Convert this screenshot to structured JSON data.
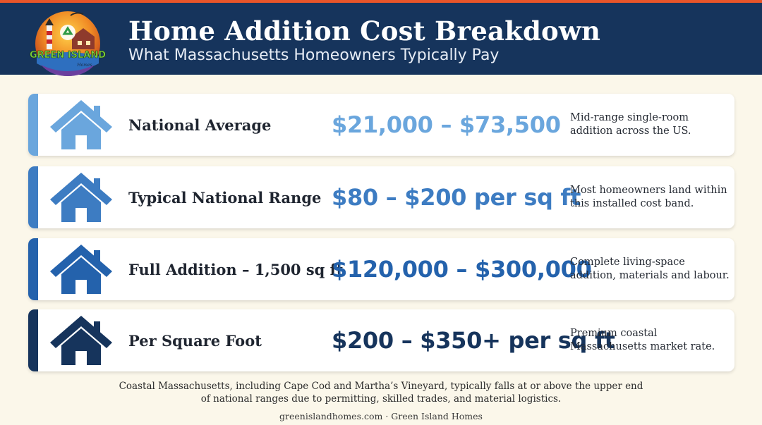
{
  "header": {
    "title": "Home Addition Cost Breakdown",
    "subtitle": "What Massachusetts Homeowners Typically Pay",
    "logo_text": "GREEN ISLAND",
    "logo_subtext": "Homes",
    "accent_color": "#e8552a",
    "background_color": "#16345c"
  },
  "cards": [
    {
      "label": "National Average",
      "value": "$21,000 – $73,500",
      "description": [
        "Mid-range single-room",
        "addition across the US."
      ],
      "color": "#6aa6dd",
      "icon": "house-icon"
    },
    {
      "label": "Typical National Range",
      "value": "$80 – $200 per sq ft",
      "description": [
        "Most homeowners land within",
        "this installed cost band."
      ],
      "color": "#3d7cc2",
      "icon": "house-icon"
    },
    {
      "label": "Full Addition – 1,500 sq ft",
      "value": "$120,000 – $300,000",
      "description": [
        "Complete living-space",
        "addition, materials and labour."
      ],
      "color": "#2462ac",
      "icon": "house-icon"
    },
    {
      "label": "Per Square Foot",
      "value": "$200 – $350+ per sq ft",
      "description": [
        "Premium coastal",
        "Massachusetts market rate."
      ],
      "color": "#16345c",
      "icon": "house-icon"
    }
  ],
  "footnote": {
    "line1": "Coastal Massachusetts, including Cape Cod and Martha’s Vineyard, typically falls at or above the upper end",
    "line2": "of national ranges due to permitting, skilled trades, and material logistics."
  },
  "credit": "greenislandhomes.com · Green Island Homes"
}
